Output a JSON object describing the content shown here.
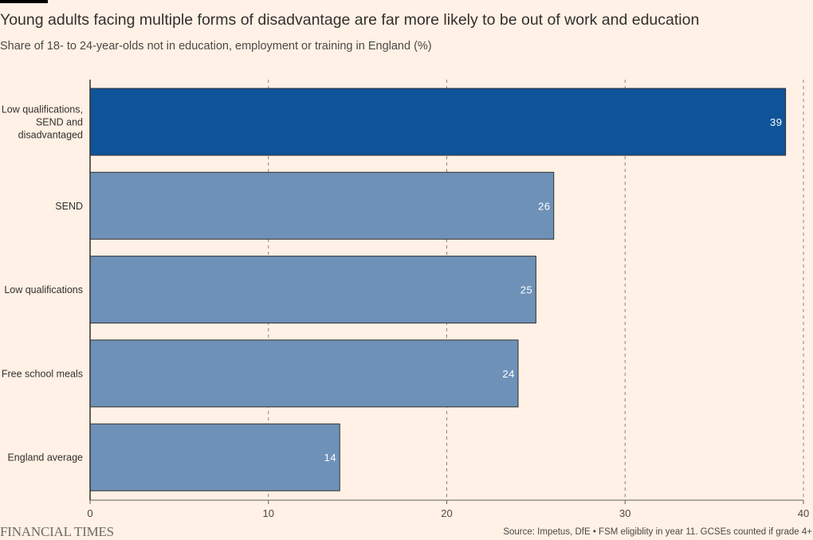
{
  "header": {
    "title": "Young adults facing multiple forms of disadvantage are far more likely to be out of work and education",
    "subtitle": "Share of 18- to 24-year-olds not in education, employment or training in England (%)"
  },
  "footer": {
    "logo": "FINANCIAL TIMES",
    "source": "Source: Impetus, DfE • FSM eligiblity in year 11. GCSEs counted if grade 4+"
  },
  "colors": {
    "background": "#fff1e5",
    "highlight_bar": "#0f5499",
    "default_bar": "#6e91b8",
    "bar_stroke": "#33302e",
    "grid": "#8c8580"
  },
  "chart_data": {
    "type": "bar",
    "orientation": "horizontal",
    "categories": [
      "Low qualifications, SEND and disadvantaged",
      "SEND",
      "Low qualifications",
      "Free school meals",
      "England average"
    ],
    "category_label_lines": [
      [
        "Low qualifications,",
        "SEND and",
        "disadvantaged"
      ],
      [
        "SEND"
      ],
      [
        "Low qualifications"
      ],
      [
        "Free school meals"
      ],
      [
        "England average"
      ]
    ],
    "values": [
      39,
      26,
      25,
      24,
      14
    ],
    "highlighted": [
      true,
      false,
      false,
      false,
      false
    ],
    "xlim": [
      0,
      40
    ],
    "xticks": [
      0,
      10,
      20,
      30,
      40
    ],
    "grid": true,
    "grid_style": "dashed vertical",
    "data_labels": true
  }
}
